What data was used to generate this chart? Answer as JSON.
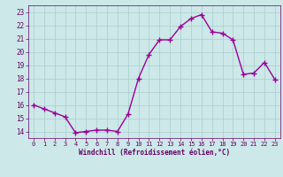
{
  "x": [
    0,
    1,
    2,
    3,
    4,
    5,
    6,
    7,
    8,
    9,
    10,
    11,
    12,
    13,
    14,
    15,
    16,
    17,
    18,
    19,
    20,
    21,
    22,
    23
  ],
  "y": [
    16.0,
    15.7,
    15.4,
    15.1,
    13.9,
    14.0,
    14.1,
    14.1,
    14.0,
    15.3,
    18.0,
    19.8,
    20.9,
    20.9,
    21.9,
    22.5,
    22.8,
    21.5,
    21.4,
    20.9,
    18.3,
    18.4,
    19.2,
    17.9
  ],
  "line_color": "#990099",
  "marker": "+",
  "marker_size": 4,
  "marker_linewidth": 1.0,
  "line_width": 1.0,
  "bg_color": "#cce8e8",
  "grid_color": "#aacccc",
  "xlabel": "Windchill (Refroidissement éolien,°C)",
  "xlabel_color": "#660066",
  "tick_color": "#660066",
  "label_color": "#660066",
  "ylim": [
    13.5,
    23.5
  ],
  "xlim": [
    -0.5,
    23.5
  ],
  "yticks": [
    14,
    15,
    16,
    17,
    18,
    19,
    20,
    21,
    22,
    23
  ],
  "xticks": [
    0,
    1,
    2,
    3,
    4,
    5,
    6,
    7,
    8,
    9,
    10,
    11,
    12,
    13,
    14,
    15,
    16,
    17,
    18,
    19,
    20,
    21,
    22,
    23
  ],
  "fig_width": 3.2,
  "fig_height": 2.0,
  "dpi": 100
}
